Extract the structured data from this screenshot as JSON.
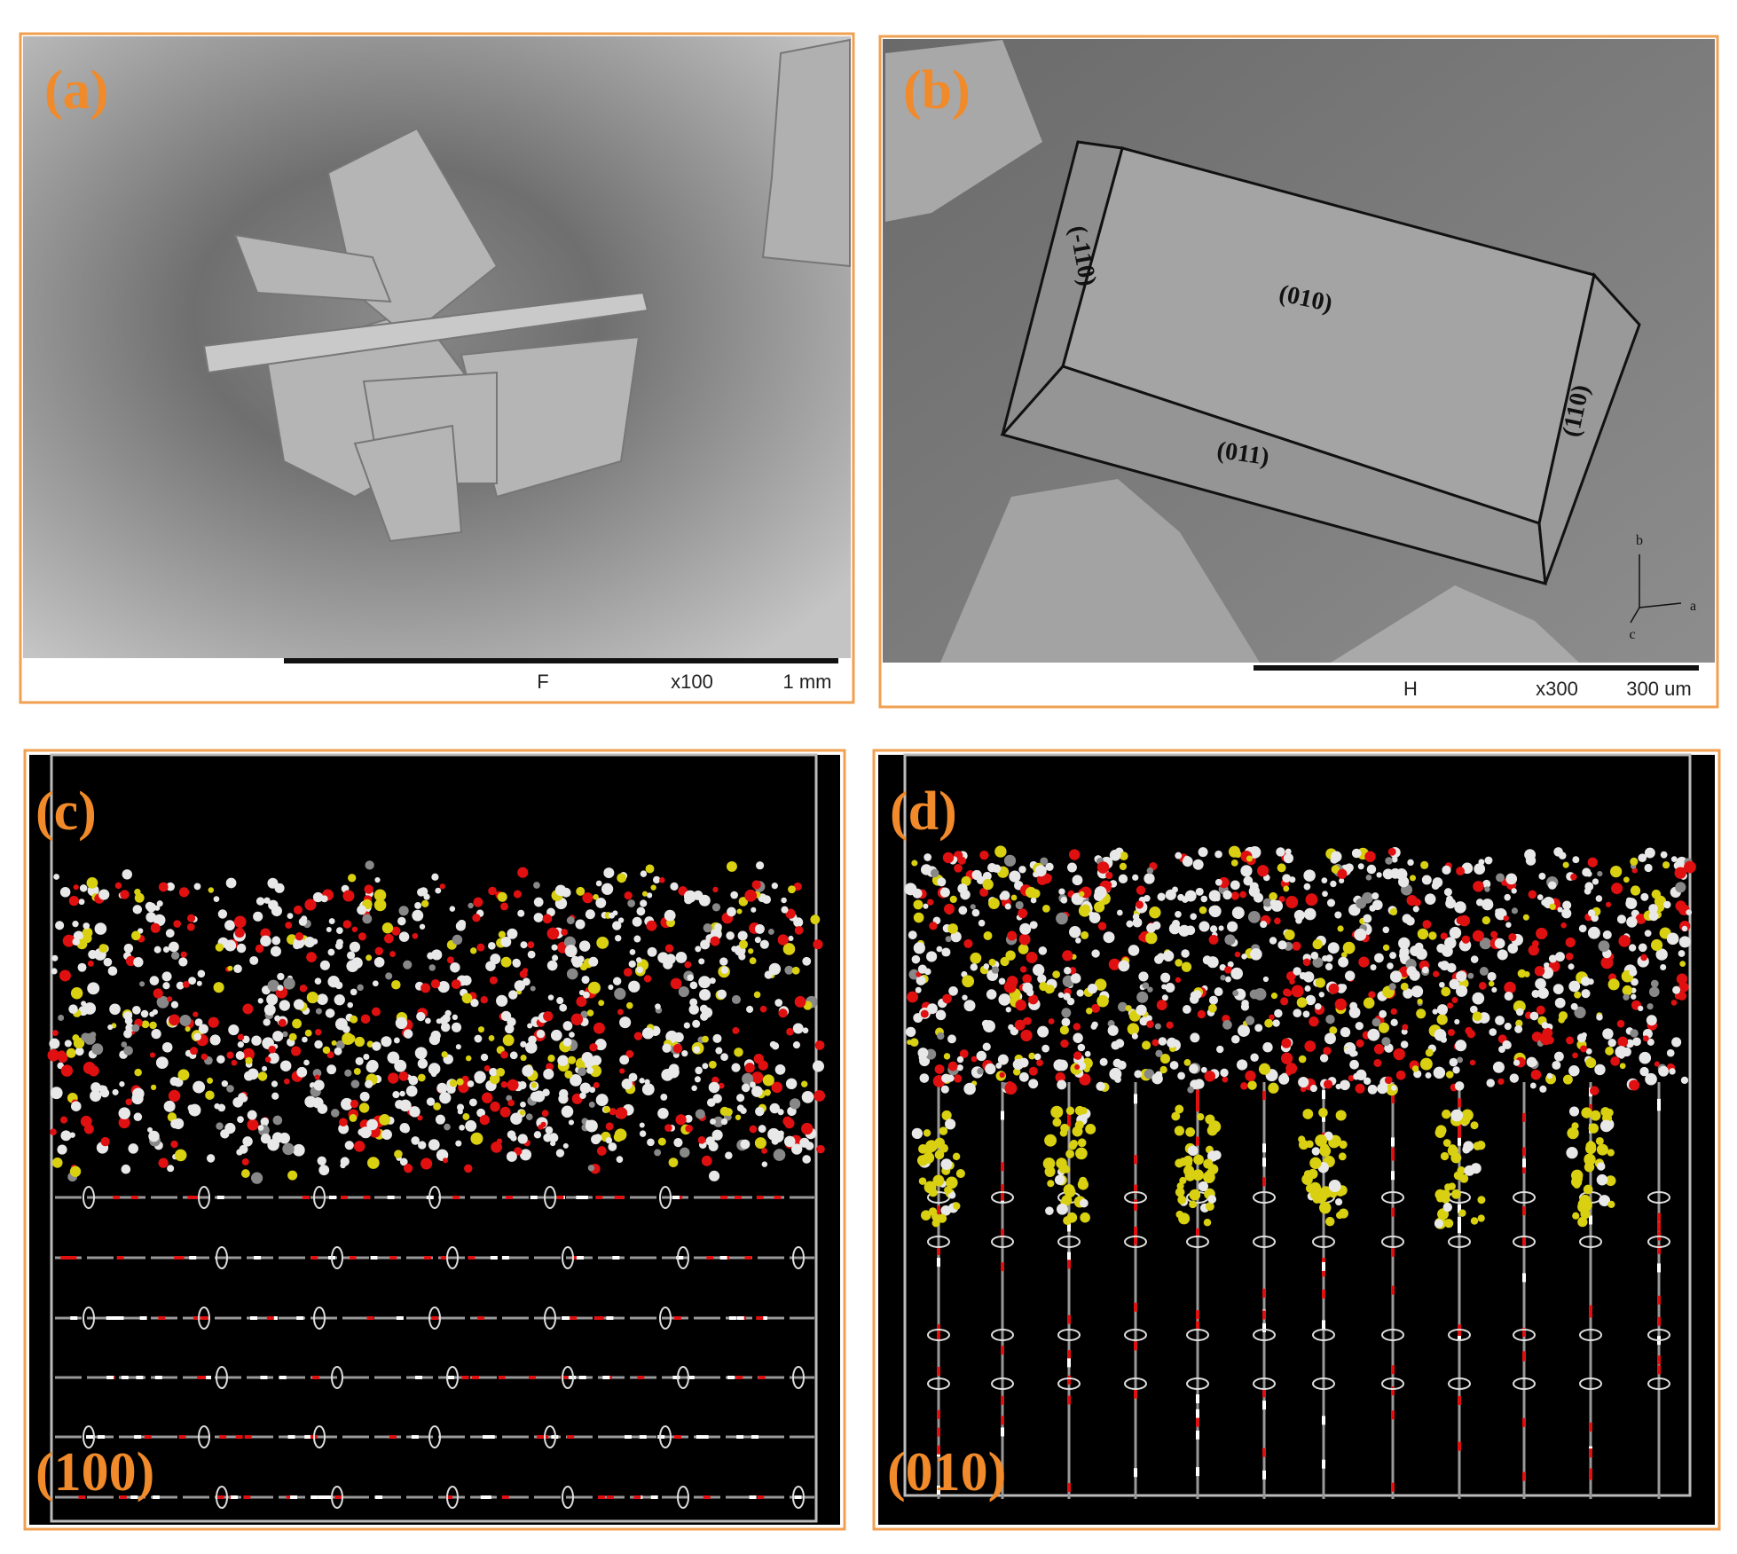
{
  "panels": [
    {
      "label": "(a)",
      "scale_bar": {
        "detector": "F",
        "magnification": "x100",
        "length": "1 mm"
      }
    },
    {
      "label": "(b)",
      "scale_bar": {
        "detector": "H",
        "magnification": "x300",
        "length": "300 um"
      },
      "facets": [
        "(-110)",
        "(010)",
        "(011)",
        "(110)"
      ],
      "axes": [
        "b",
        "a",
        "c"
      ]
    },
    {
      "label": "(c)",
      "plane": "(100)"
    },
    {
      "label": "(d)",
      "plane": "(010)"
    }
  ]
}
